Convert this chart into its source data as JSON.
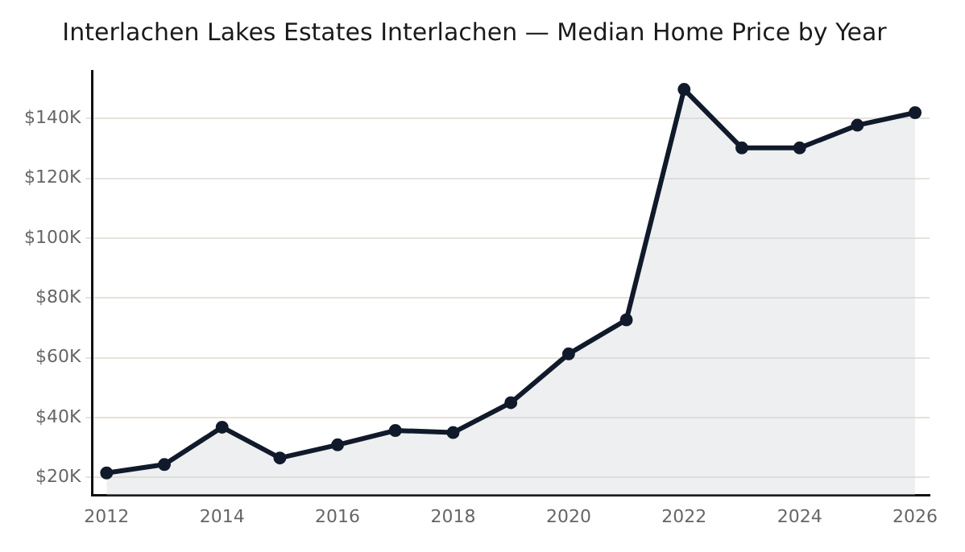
{
  "chart_data": {
    "type": "area",
    "title": "Interlachen Lakes Estates Interlachen — Median Home Price by Year",
    "x": [
      2012,
      2013,
      2014,
      2015,
      2016,
      2017,
      2018,
      2019,
      2020,
      2021,
      2022,
      2023,
      2024,
      2025,
      2026
    ],
    "series": [
      {
        "color": "#111a2b",
        "values": [
          21500,
          24300,
          36800,
          26500,
          30900,
          35700,
          35000,
          45000,
          61300,
          72700,
          149800,
          130200,
          130200,
          137800,
          142000
        ]
      }
    ],
    "xlim": [
      2011.75,
      2026.25
    ],
    "xticks": [
      2012,
      2014,
      2016,
      2018,
      2020,
      2022,
      2024,
      2026
    ],
    "ylim": [
      14000,
      156000
    ],
    "yticks": [
      {
        "value": 20000,
        "label": "$20K"
      },
      {
        "value": 40000,
        "label": "$40K"
      },
      {
        "value": 60000,
        "label": "$60K"
      },
      {
        "value": 80000,
        "label": "$80K"
      },
      {
        "value": 100000,
        "label": "$100K"
      },
      {
        "value": 120000,
        "label": "$120K"
      },
      {
        "value": 140000,
        "label": "$140K"
      }
    ],
    "grid": "y",
    "legend": false,
    "marker": "circle",
    "line_style": "solid"
  }
}
